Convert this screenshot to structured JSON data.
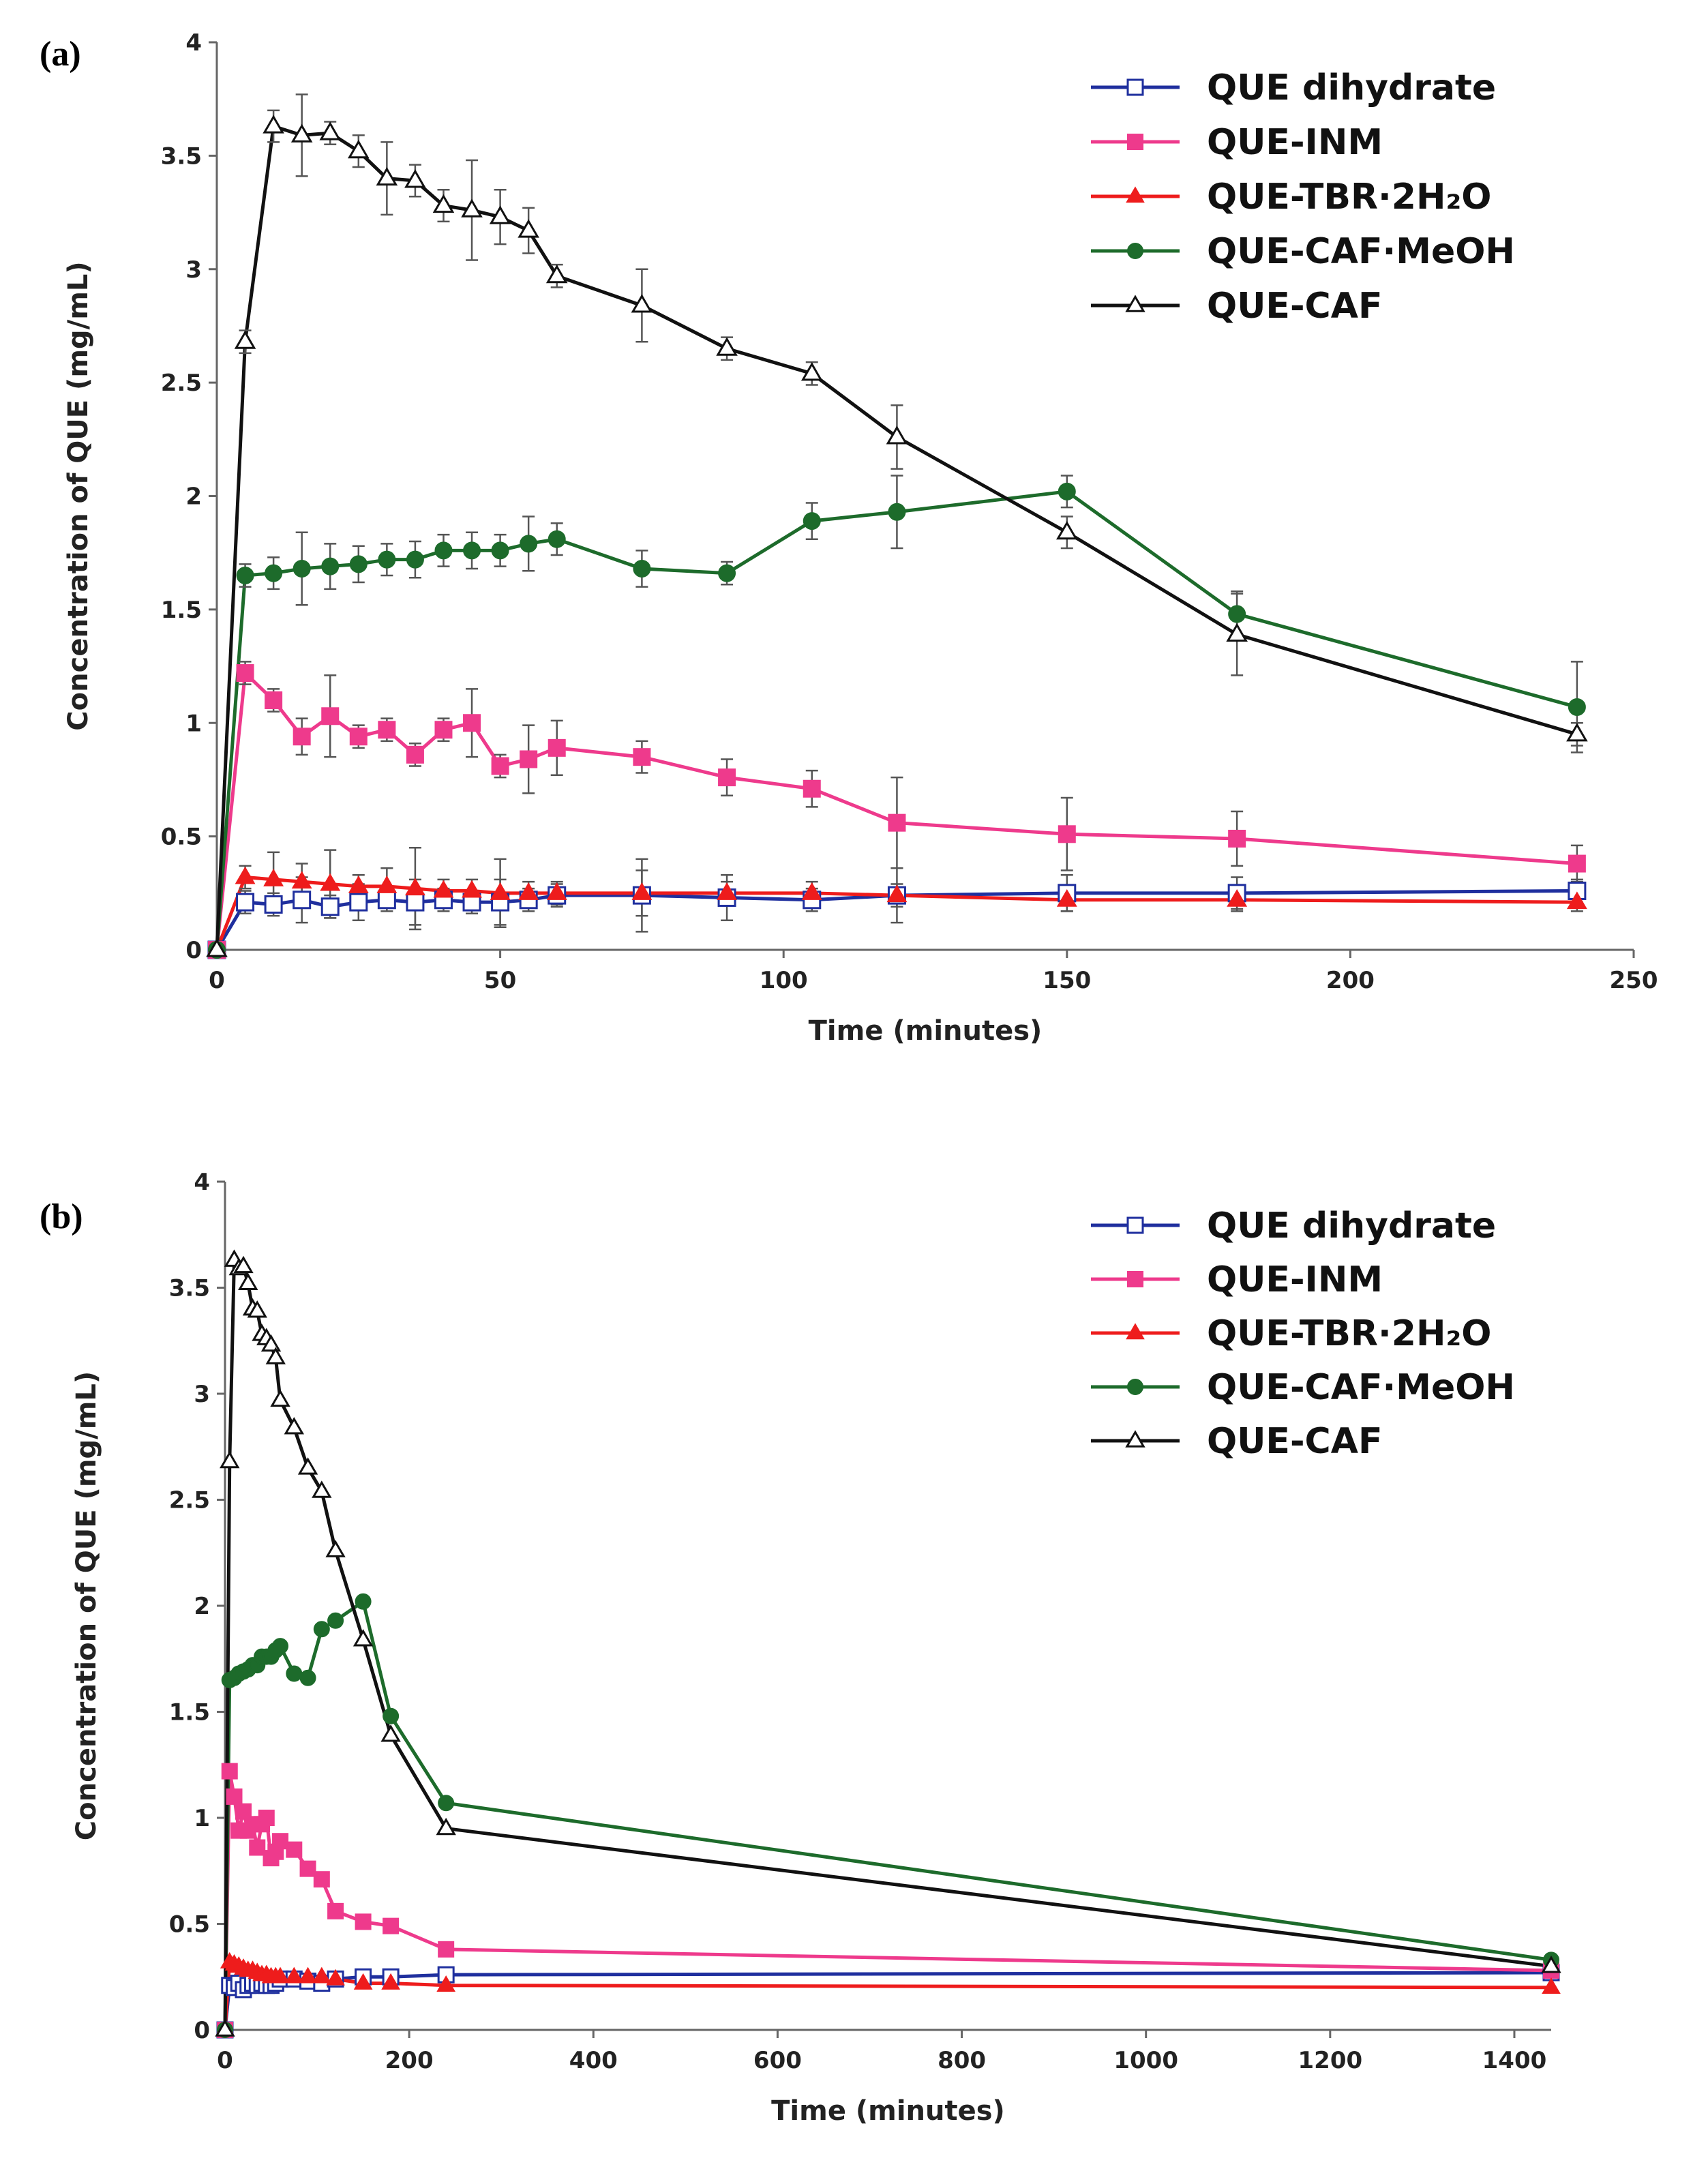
{
  "chart_data": [
    {
      "type": "line",
      "panel_label": "(a)",
      "xlabel": "Time (minutes)",
      "ylabel": "Concentration of QUE (mg/mL)",
      "xlim": [
        0,
        250
      ],
      "ylim": [
        0,
        4
      ],
      "xticks": [
        0,
        50,
        100,
        150,
        200,
        250
      ],
      "yticks": [
        0,
        0.5,
        1,
        1.5,
        2,
        2.5,
        3,
        3.5,
        4
      ],
      "legend_position": "top-right",
      "series": [
        {
          "name": "QUE dihydrate",
          "color": "#1f2f9e",
          "marker": "open-square",
          "x": [
            0,
            5,
            10,
            15,
            20,
            25,
            30,
            35,
            40,
            45,
            50,
            55,
            60,
            75,
            90,
            105,
            120,
            150,
            180,
            240
          ],
          "y": [
            0,
            0.21,
            0.2,
            0.22,
            0.19,
            0.21,
            0.22,
            0.21,
            0.22,
            0.21,
            0.21,
            0.22,
            0.24,
            0.24,
            0.23,
            0.22,
            0.24,
            0.25,
            0.25,
            0.26
          ],
          "err": [
            0,
            0.05,
            0.05,
            0.1,
            0.05,
            0.08,
            0.05,
            0.1,
            0.05,
            0.05,
            0.1,
            0.05,
            0.05,
            0.16,
            0.1,
            0.05,
            0.12,
            0.08,
            0.07,
            0.05
          ]
        },
        {
          "name": "QUE-INM",
          "color": "#ee3a8c",
          "marker": "square",
          "x": [
            0,
            5,
            10,
            15,
            20,
            25,
            30,
            35,
            40,
            45,
            50,
            55,
            60,
            75,
            90,
            105,
            120,
            150,
            180,
            240
          ],
          "y": [
            0,
            1.22,
            1.1,
            0.94,
            1.03,
            0.94,
            0.97,
            0.86,
            0.97,
            1.0,
            0.81,
            0.84,
            0.89,
            0.85,
            0.76,
            0.71,
            0.56,
            0.51,
            0.49,
            0.38
          ],
          "err": [
            0,
            0.05,
            0.05,
            0.08,
            0.18,
            0.05,
            0.05,
            0.05,
            0.05,
            0.15,
            0.05,
            0.15,
            0.12,
            0.07,
            0.08,
            0.08,
            0.2,
            0.16,
            0.12,
            0.08
          ]
        },
        {
          "name": "QUE-TBR·2H₂O",
          "color": "#ee1c1c",
          "marker": "triangle",
          "x": [
            0,
            5,
            10,
            15,
            20,
            25,
            30,
            35,
            40,
            45,
            50,
            55,
            60,
            75,
            90,
            105,
            120,
            150,
            180,
            240
          ],
          "y": [
            0,
            0.32,
            0.31,
            0.3,
            0.29,
            0.28,
            0.28,
            0.27,
            0.26,
            0.26,
            0.25,
            0.25,
            0.25,
            0.25,
            0.25,
            0.25,
            0.24,
            0.22,
            0.22,
            0.21
          ],
          "err": [
            0,
            0.05,
            0.12,
            0.08,
            0.15,
            0.05,
            0.08,
            0.18,
            0.05,
            0.05,
            0.15,
            0.05,
            0.05,
            0.1,
            0.05,
            0.05,
            0.05,
            0.05,
            0.05,
            0.04
          ]
        },
        {
          "name": "QUE-CAF·MeOH",
          "color": "#1d6b2b",
          "marker": "circle",
          "x": [
            0,
            5,
            10,
            15,
            20,
            25,
            30,
            35,
            40,
            45,
            50,
            55,
            60,
            75,
            90,
            105,
            120,
            150,
            180,
            240
          ],
          "y": [
            0,
            1.65,
            1.66,
            1.68,
            1.69,
            1.7,
            1.72,
            1.72,
            1.76,
            1.76,
            1.76,
            1.79,
            1.81,
            1.68,
            1.66,
            1.89,
            1.93,
            2.02,
            1.48,
            1.07
          ],
          "err": [
            0,
            0.05,
            0.07,
            0.16,
            0.1,
            0.08,
            0.07,
            0.08,
            0.07,
            0.08,
            0.07,
            0.12,
            0.07,
            0.08,
            0.05,
            0.08,
            0.16,
            0.07,
            0.1,
            0.2
          ]
        },
        {
          "name": "QUE-CAF",
          "color": "#111111",
          "marker": "open-triangle",
          "x": [
            0,
            5,
            10,
            15,
            20,
            25,
            30,
            35,
            40,
            45,
            50,
            55,
            60,
            75,
            90,
            105,
            120,
            150,
            180,
            240
          ],
          "y": [
            0,
            2.68,
            3.63,
            3.59,
            3.6,
            3.52,
            3.4,
            3.39,
            3.28,
            3.26,
            3.23,
            3.17,
            2.97,
            2.84,
            2.65,
            2.54,
            2.26,
            1.84,
            1.39,
            0.95
          ],
          "err": [
            0,
            0.05,
            0.07,
            0.18,
            0.05,
            0.07,
            0.16,
            0.07,
            0.07,
            0.22,
            0.12,
            0.1,
            0.05,
            0.16,
            0.05,
            0.05,
            0.14,
            0.07,
            0.18,
            0.05
          ]
        }
      ]
    },
    {
      "type": "line",
      "panel_label": "(b)",
      "xlabel": "Time (minutes)",
      "ylabel": "Concentration of QUE (mg/mL)",
      "xlim": [
        0,
        1440
      ],
      "ylim": [
        0,
        4
      ],
      "xticks": [
        0,
        200,
        400,
        600,
        800,
        1000,
        1200,
        1400
      ],
      "yticks": [
        0,
        0.5,
        1,
        1.5,
        2,
        2.5,
        3,
        3.5,
        4
      ],
      "legend_position": "top-right",
      "series": [
        {
          "name": "QUE dihydrate",
          "color": "#1f2f9e",
          "marker": "open-square",
          "x": [
            0,
            5,
            10,
            15,
            20,
            25,
            30,
            35,
            40,
            45,
            50,
            55,
            60,
            75,
            90,
            105,
            120,
            150,
            180,
            240,
            1440
          ],
          "y": [
            0,
            0.21,
            0.2,
            0.22,
            0.19,
            0.21,
            0.22,
            0.21,
            0.22,
            0.21,
            0.21,
            0.22,
            0.24,
            0.24,
            0.23,
            0.22,
            0.24,
            0.25,
            0.25,
            0.26,
            0.27
          ]
        },
        {
          "name": "QUE-INM",
          "color": "#ee3a8c",
          "marker": "square",
          "x": [
            0,
            5,
            10,
            15,
            20,
            25,
            30,
            35,
            40,
            45,
            50,
            55,
            60,
            75,
            90,
            105,
            120,
            150,
            180,
            240,
            1440
          ],
          "y": [
            0,
            1.22,
            1.1,
            0.94,
            1.03,
            0.94,
            0.97,
            0.86,
            0.97,
            1.0,
            0.81,
            0.84,
            0.89,
            0.85,
            0.76,
            0.71,
            0.56,
            0.51,
            0.49,
            0.38,
            0.28
          ]
        },
        {
          "name": "QUE-TBR·2H₂O",
          "color": "#ee1c1c",
          "marker": "triangle",
          "x": [
            0,
            5,
            10,
            15,
            20,
            25,
            30,
            35,
            40,
            45,
            50,
            55,
            60,
            75,
            90,
            105,
            120,
            150,
            180,
            240,
            1440
          ],
          "y": [
            0,
            0.32,
            0.31,
            0.3,
            0.29,
            0.28,
            0.28,
            0.27,
            0.26,
            0.26,
            0.25,
            0.25,
            0.25,
            0.25,
            0.25,
            0.25,
            0.24,
            0.22,
            0.22,
            0.21,
            0.2
          ]
        },
        {
          "name": "QUE-CAF·MeOH",
          "color": "#1d6b2b",
          "marker": "circle",
          "x": [
            0,
            5,
            10,
            15,
            20,
            25,
            30,
            35,
            40,
            45,
            50,
            55,
            60,
            75,
            90,
            105,
            120,
            150,
            180,
            240,
            1440
          ],
          "y": [
            0,
            1.65,
            1.66,
            1.68,
            1.69,
            1.7,
            1.72,
            1.72,
            1.76,
            1.76,
            1.76,
            1.79,
            1.81,
            1.68,
            1.66,
            1.89,
            1.93,
            2.02,
            1.48,
            1.07,
            0.33
          ]
        },
        {
          "name": "QUE-CAF",
          "color": "#111111",
          "marker": "open-triangle",
          "x": [
            0,
            5,
            10,
            15,
            20,
            25,
            30,
            35,
            40,
            45,
            50,
            55,
            60,
            75,
            90,
            105,
            120,
            150,
            180,
            240,
            1440
          ],
          "y": [
            0,
            2.68,
            3.63,
            3.59,
            3.6,
            3.52,
            3.4,
            3.39,
            3.28,
            3.26,
            3.23,
            3.17,
            2.97,
            2.84,
            2.65,
            2.54,
            2.26,
            1.84,
            1.39,
            0.95,
            0.3
          ]
        }
      ]
    }
  ]
}
